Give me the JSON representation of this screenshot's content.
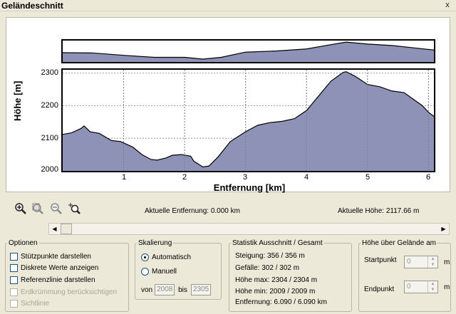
{
  "window": {
    "title": "Geländeschnitt",
    "close": "x"
  },
  "chart": {
    "ylabel": "Höhe [m]",
    "xlabel": "Entfernung [km]",
    "yticks": [
      "2300",
      "2200",
      "2100",
      "2000"
    ],
    "xticks": [
      "1",
      "2",
      "3",
      "4",
      "5",
      "6"
    ],
    "fill_color": "#8e92b6",
    "grid_color": "#999999"
  },
  "chart_data": [
    {
      "type": "area",
      "title": "",
      "xlabel": "Entfernung [km]",
      "ylabel": "Höhe [m]",
      "xlim": [
        0,
        6.09
      ],
      "ylim": [
        2000,
        2310
      ],
      "grid": true,
      "x": [
        0,
        0.15,
        0.3,
        0.35,
        0.45,
        0.6,
        0.8,
        0.95,
        1.15,
        1.3,
        1.45,
        1.55,
        1.7,
        1.8,
        1.95,
        2.1,
        2.15,
        2.25,
        2.3,
        2.4,
        2.55,
        2.75,
        3.0,
        3.2,
        3.4,
        3.6,
        3.8,
        4.0,
        4.2,
        4.4,
        4.6,
        4.65,
        4.8,
        5.0,
        5.2,
        5.4,
        5.6,
        5.75,
        5.9,
        6.0,
        6.09
      ],
      "y": [
        2112,
        2117,
        2130,
        2138,
        2120,
        2115,
        2093,
        2090,
        2073,
        2050,
        2035,
        2033,
        2040,
        2048,
        2050,
        2045,
        2030,
        2018,
        2012,
        2015,
        2043,
        2090,
        2120,
        2140,
        2148,
        2152,
        2160,
        2185,
        2230,
        2275,
        2302,
        2304,
        2290,
        2265,
        2258,
        2245,
        2240,
        2220,
        2200,
        2180,
        2167
      ]
    },
    {
      "type": "area",
      "title": "",
      "xlabel": "",
      "ylabel": "",
      "note_series": "overview",
      "x": [
        0,
        0.5,
        1.0,
        1.5,
        2.0,
        2.3,
        2.6,
        3.0,
        3.5,
        4.0,
        4.4,
        4.65,
        5.0,
        5.4,
        5.8,
        6.09
      ],
      "y": [
        2120,
        2115,
        2075,
        2040,
        2040,
        2009,
        2040,
        2130,
        2150,
        2185,
        2260,
        2304,
        2270,
        2245,
        2200,
        2167
      ]
    }
  ],
  "toolbar": {
    "zoom_in_icon": "zoom-in-icon",
    "zoom_out_icon": "zoom-out-icon",
    "zoom_icon": "zoom-icon",
    "zoom_select_icon": "zoom-select-icon"
  },
  "status": {
    "distance": "Aktuelle Entfernung: 0.000 km",
    "height": "Aktuelle Höhe: 2117.66 m"
  },
  "options": {
    "legend": "Optionen",
    "items": [
      {
        "label": "Stützpunkte darstellen",
        "enabled": true
      },
      {
        "label": "Diskrete Werte anzeigen",
        "enabled": true
      },
      {
        "label": "Referenzlinie darstellen",
        "enabled": true
      },
      {
        "label": "Erdkrümmung berücksichtigen",
        "enabled": false
      },
      {
        "label": "Sichtlinie",
        "enabled": false
      }
    ]
  },
  "scaling": {
    "legend": "Skalierung",
    "auto": "Automatisch",
    "manual": "Manuell",
    "from_label": "von",
    "from_value": "2008",
    "to_label": "bis",
    "to_value": "2305"
  },
  "stats": {
    "legend": "Statistik   Ausschnitt / Gesamt",
    "lines": [
      "Steigung: 356 / 356 m",
      "Gefälle: 302 / 302 m",
      "Höhe max: 2304 / 2304 m",
      "Höhe min: 2009 / 2009 m",
      "Entfernung: 6.090 / 6.090 km"
    ]
  },
  "terrain": {
    "legend": "Höhe über Gelände am",
    "start_label": "Startpunkt",
    "start_value": "0",
    "end_label": "Endpunkt",
    "end_value": "0",
    "unit": "m"
  }
}
